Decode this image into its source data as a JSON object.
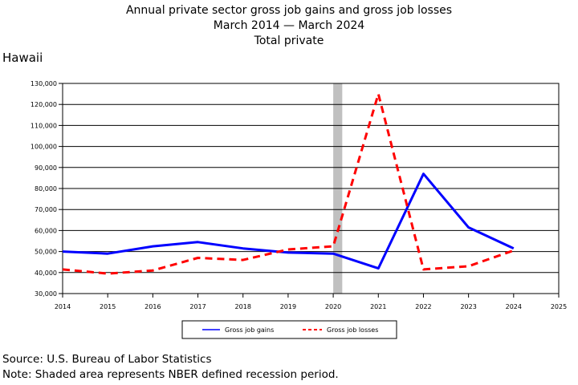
{
  "titles": {
    "line1": "Annual private sector gross job gains and gross job losses",
    "line2": "March 2014 — March 2024",
    "line3": "Total private"
  },
  "region": "Hawaii",
  "footer": {
    "source": "Source: U.S. Bureau of Labor Statistics",
    "note": "Note: Shaded area represents NBER defined recession period."
  },
  "chart_data": {
    "type": "line",
    "x": [
      2014,
      2015,
      2016,
      2017,
      2018,
      2019,
      2020,
      2021,
      2022,
      2023,
      2024
    ],
    "xlim": [
      2014,
      2025
    ],
    "xticks": [
      2014,
      2015,
      2016,
      2017,
      2018,
      2019,
      2020,
      2021,
      2022,
      2023,
      2024,
      2025
    ],
    "ylim": [
      30000,
      130000
    ],
    "yticks": [
      30000,
      40000,
      50000,
      60000,
      70000,
      80000,
      90000,
      100000,
      110000,
      120000,
      130000
    ],
    "ytick_labels": [
      "30,000",
      "40,000",
      "50,000",
      "60,000",
      "70,000",
      "80,000",
      "90,000",
      "100,000",
      "110,000",
      "120,000",
      "130,000"
    ],
    "grid": "horizontal",
    "recession": {
      "start": 2020,
      "end": 2020.2,
      "color": "#c0c0c0"
    },
    "legend_position": "bottom",
    "series": [
      {
        "name": "Gross job gains",
        "color": "#0000ff",
        "style": "solid",
        "values": [
          50000,
          49000,
          52500,
          54500,
          51500,
          49500,
          49000,
          42000,
          87000,
          61500,
          51500
        ]
      },
      {
        "name": "Gross job losses",
        "color": "#ff0000",
        "style": "dashed",
        "values": [
          41500,
          39500,
          41000,
          47000,
          46000,
          51000,
          52500,
          125000,
          41500,
          43000,
          50500
        ]
      }
    ]
  }
}
